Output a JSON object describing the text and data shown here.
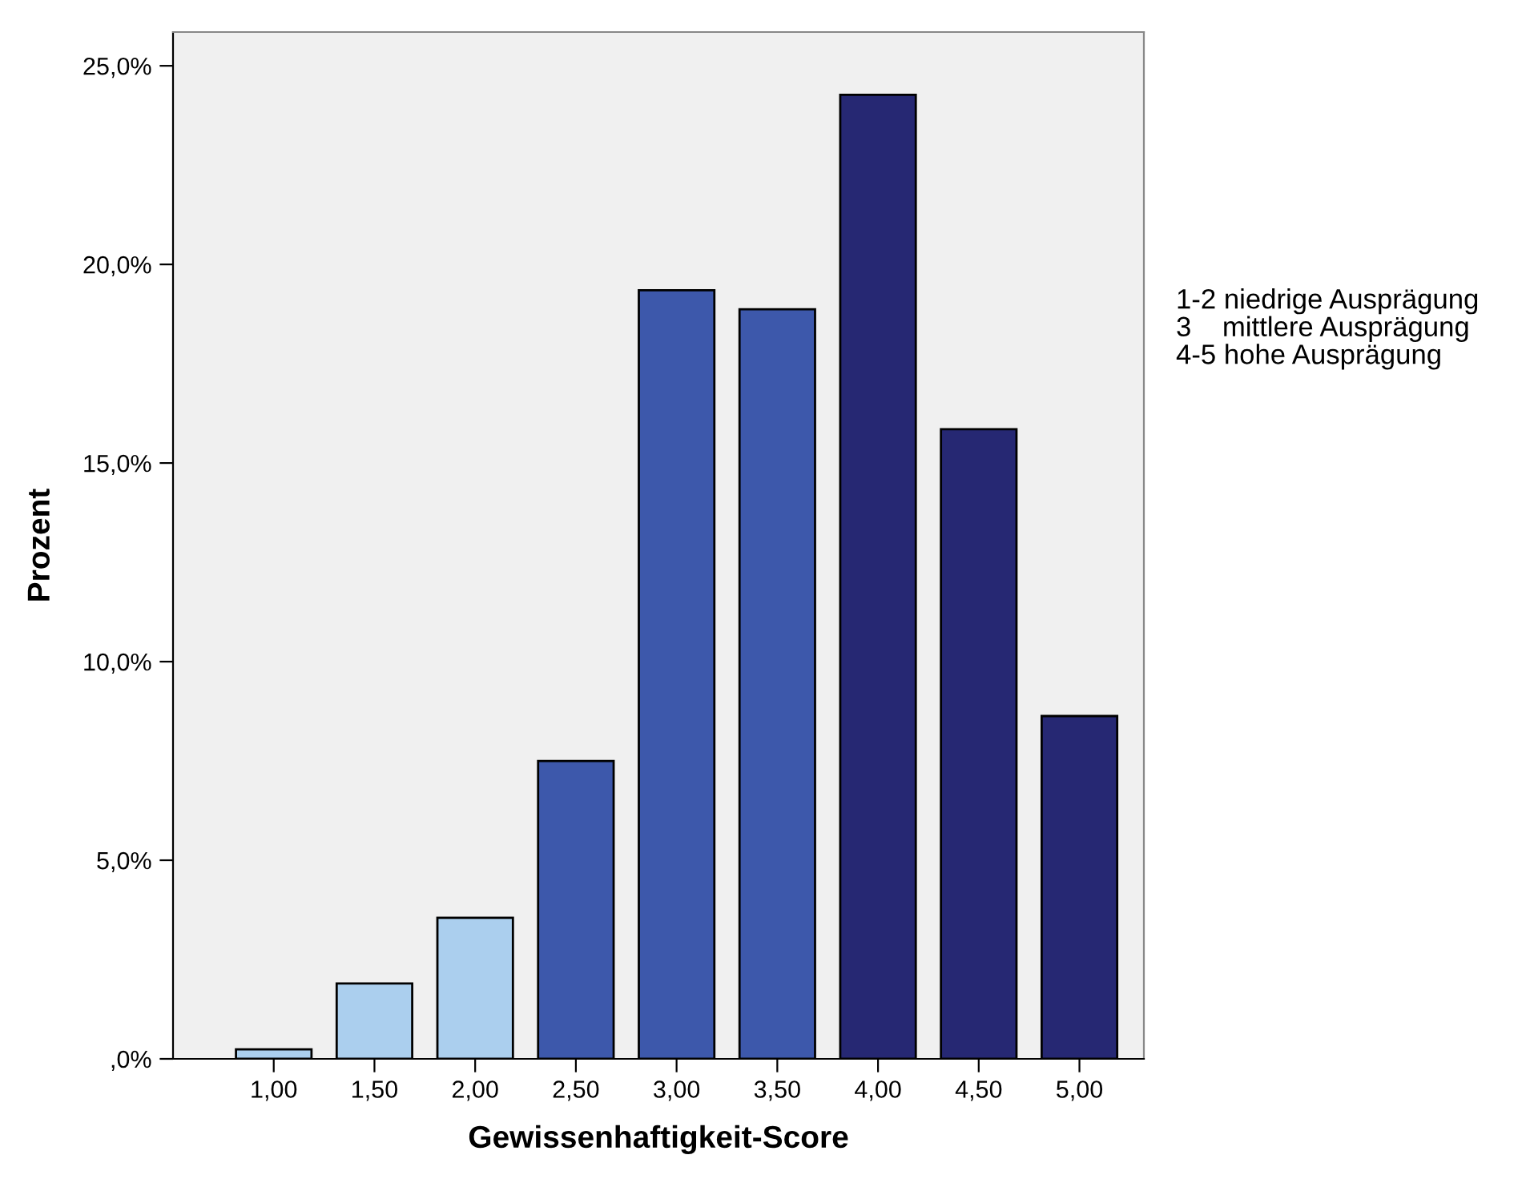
{
  "chart_data": {
    "type": "bar",
    "xlabel": "Gewissenhaftigkeit-Score",
    "ylabel": "Prozent",
    "categories": [
      "1,00",
      "1,50",
      "2,00",
      "2,50",
      "3,00",
      "3,50",
      "4,00",
      "4,50",
      "5,00"
    ],
    "values": [
      0.24,
      1.9,
      3.55,
      7.5,
      19.35,
      18.87,
      24.27,
      15.85,
      8.63
    ],
    "colors": [
      "#abcfee",
      "#abcfee",
      "#abcfee",
      "#3d58ab",
      "#3d58ab",
      "#3d58ab",
      "#262873",
      "#262873",
      "#262873"
    ],
    "ylim": [
      0,
      25.85
    ],
    "yticks": [
      {
        "value": 0,
        "label": ",0%"
      },
      {
        "value": 5,
        "label": "5,0%"
      },
      {
        "value": 10,
        "label": "10,0%"
      },
      {
        "value": 15,
        "label": "15,0%"
      },
      {
        "value": 20,
        "label": "20,0%"
      },
      {
        "value": 25,
        "label": "25,0%"
      }
    ],
    "annotations": [
      "1-2 niedrige Ausprägung",
      "3    mittlere Ausprägung",
      "4-5 hohe Ausprägung"
    ],
    "grid": false,
    "legend": false
  }
}
